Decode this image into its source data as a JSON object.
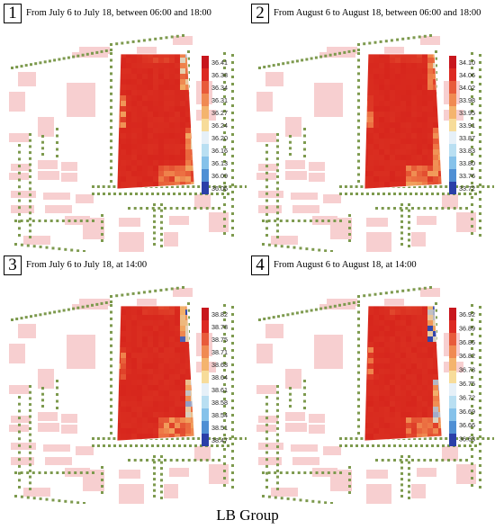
{
  "panels": [
    {
      "number": "1",
      "title": "From July 6 to July 18, between 06:00 and 18:00",
      "legend": [
        "36.41",
        "36.38",
        "36.34",
        "36.31",
        "36.27",
        "36.24",
        "36.20",
        "36.16",
        "36.13",
        "36.09",
        "36.06"
      ]
    },
    {
      "number": "2",
      "title": "From August 6 to August 18, between 06:00 and 18:00",
      "legend": [
        "34.10",
        "34.06",
        "34.02",
        "33.98",
        "33.95",
        "33.91",
        "33.87",
        "33.83",
        "33.80",
        "33.76",
        "33.72"
      ]
    },
    {
      "number": "3",
      "title": "From July 6 to July 18, at 14:00",
      "legend": [
        "38.82",
        "38.78",
        "38.75",
        "38.71",
        "38.68",
        "38.64",
        "38.61",
        "38.58",
        "38.54",
        "38.51",
        "38.47"
      ]
    },
    {
      "number": "4",
      "title": "From August 6 to August 18, at 14:00",
      "legend": [
        "36.92",
        "36.89",
        "36.86",
        "36.82",
        "36.78",
        "36.75",
        "36.72",
        "36.69",
        "36.66",
        "36.63"
      ]
    }
  ],
  "footer": "LB Group",
  "colors": {
    "building": "#f7cfd0",
    "tree": "#7d9a4e",
    "heat_high": "#dd2a1c",
    "heat_mid": "#f2a35a",
    "heat_low": "#3a4fb0"
  }
}
